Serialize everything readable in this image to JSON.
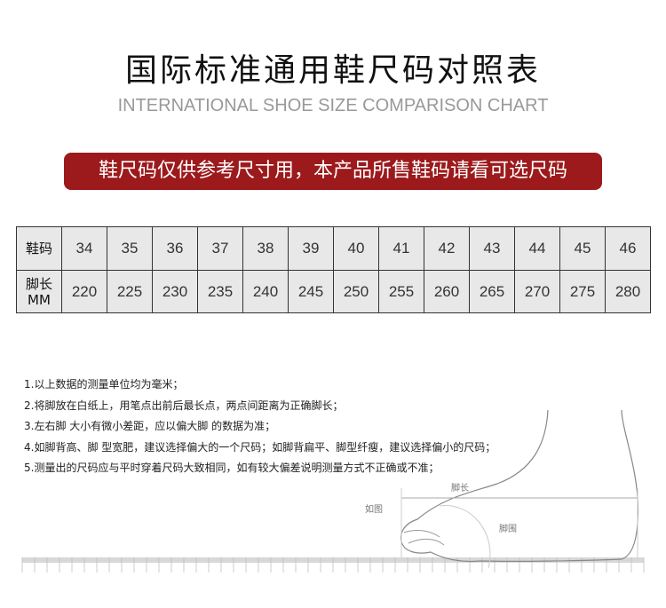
{
  "title": "国际标准通用鞋尺码对照表",
  "subtitle": "INTERNATIONAL SHOE SIZE COMPARISON CHART",
  "banner": "鞋尺码仅供参考尺寸用，本产品所售鞋码请看可选尺码",
  "table": {
    "row1_label": "鞋码",
    "row2_label_line1": "脚长",
    "row2_label_line2": "MM",
    "sizes": [
      "34",
      "35",
      "36",
      "37",
      "38",
      "39",
      "40",
      "41",
      "42",
      "43",
      "44",
      "45",
      "46"
    ],
    "lengths": [
      "220",
      "225",
      "230",
      "235",
      "240",
      "245",
      "250",
      "255",
      "260",
      "265",
      "270",
      "275",
      "280"
    ]
  },
  "notes": [
    "1.以上数据的测量单位均为毫米；",
    "2.将脚放在白纸上，用笔点出前后最长点，两点间距离为正确脚长；",
    "3.左右脚 大小有微小差距，应以偏大脚 的数据为准；",
    "4.如脚背高、脚 型宽肥，建议选择偏大的一个尺码；如脚背扁平、脚型纤瘦，建议选择偏小的尺码；",
    "5.测量出的尺码应与平时穿着尺码大致相同，如有较大偏差说明测量方式不正确或不准；"
  ],
  "diagram": {
    "foot_length_label": "脚长",
    "as_shown_label": "如图",
    "foot_girth_label": "脚围"
  },
  "colors": {
    "banner": "#9c1a1c",
    "table_bg": "#e8e8e8",
    "subtitle": "#999999"
  }
}
